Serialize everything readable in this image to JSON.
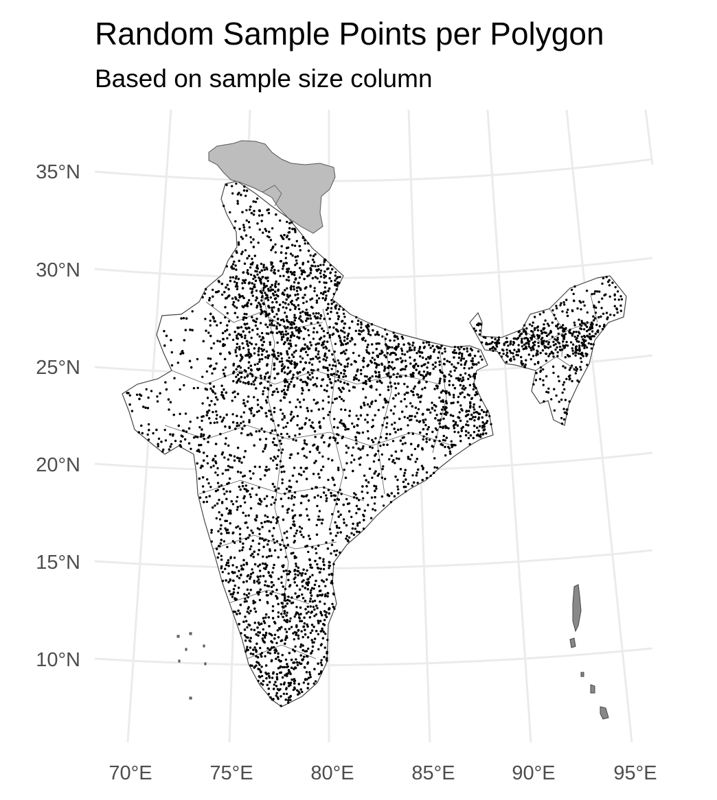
{
  "map": {
    "title": "Random Sample Points per Polygon",
    "subtitle": "Based on sample size column",
    "lat_labels": [
      "35°N",
      "30°N",
      "25°N",
      "20°N",
      "15°N",
      "10°N"
    ],
    "lon_labels": [
      "70°E",
      "75°E",
      "80°E",
      "85°E",
      "90°E",
      "95°E"
    ],
    "colors": {
      "background": "#ffffff",
      "grid": "#ebebeb",
      "points": "#000000",
      "highlighted_region": "#bdbdbd",
      "polygon_border": "#444444",
      "tick_text": "#4d4d4d"
    },
    "highlighted_region_name": "grey-northern-region",
    "point_density": "dense"
  }
}
